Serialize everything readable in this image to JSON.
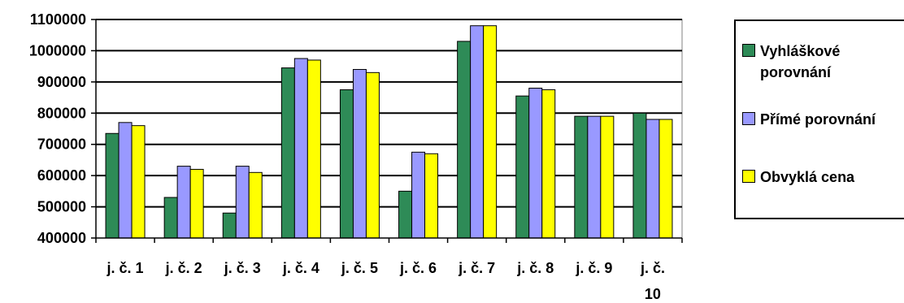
{
  "chart_data": {
    "type": "bar",
    "categories": [
      "j. č. 1",
      "j. č. 2",
      "j. č. 3",
      "j. č. 4",
      "j. č. 5",
      "j. č. 6",
      "j. č. 7",
      "j. č. 8",
      "j. č. 9",
      "j. č. 10"
    ],
    "series": [
      {
        "name": "Vyhláškové porovnání",
        "color": "#2e8b57",
        "values": [
          735000,
          530000,
          480000,
          945000,
          875000,
          550000,
          1030000,
          855000,
          790000,
          800000
        ]
      },
      {
        "name": "Přímé porovnání",
        "color": "#9999ff",
        "values": [
          770000,
          630000,
          630000,
          975000,
          940000,
          675000,
          1080000,
          880000,
          790000,
          780000
        ]
      },
      {
        "name": "Obvyklá cena",
        "color": "#ffff00",
        "values": [
          760000,
          620000,
          610000,
          970000,
          930000,
          670000,
          1080000,
          875000,
          790000,
          780000
        ]
      }
    ],
    "yticks": [
      "400000",
      "500000",
      "600000",
      "700000",
      "800000",
      "900000",
      "1000000",
      "1100000"
    ],
    "ylim": [
      400000,
      1100000
    ],
    "grid": true,
    "legend_position": "right"
  }
}
